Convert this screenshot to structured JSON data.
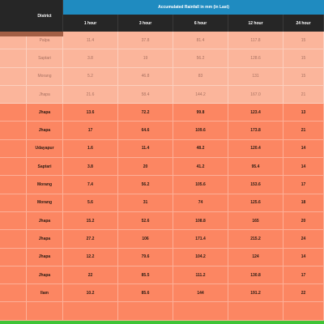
{
  "table": {
    "district_header": "District",
    "group_header": "Accumulated Rainfall in mm (in Last)",
    "columns": [
      "1 hour",
      "3 hour",
      "6 hour",
      "12 hour",
      "24 hour"
    ],
    "rows": [
      {
        "district": "Palpa",
        "values": [
          "11.4",
          "37.8",
          "81.4",
          "117.8",
          "15"
        ],
        "style": "light"
      },
      {
        "district": "Saptari",
        "values": [
          "3.8",
          "19",
          "56.2",
          "128.6",
          "15"
        ],
        "style": "light"
      },
      {
        "district": "Morang",
        "values": [
          "5.2",
          "46.8",
          "83",
          "131",
          "15"
        ],
        "style": "light"
      },
      {
        "district": "Jhapa",
        "values": [
          "21.6",
          "58.4",
          "144.2",
          "167.0",
          "21"
        ],
        "style": "light"
      },
      {
        "district": "Jhapa",
        "values": [
          "13.6",
          "72.2",
          "99.8",
          "123.4",
          "13"
        ],
        "style": "dark"
      },
      {
        "district": "Jhapa",
        "values": [
          "17",
          "64.6",
          "109.6",
          "173.8",
          "21"
        ],
        "style": "dark"
      },
      {
        "district": "Udayapur",
        "values": [
          "1.6",
          "11.4",
          "48.2",
          "120.4",
          "14"
        ],
        "style": "dark"
      },
      {
        "district": "Saptari",
        "values": [
          "3.8",
          "20",
          "41.2",
          "95.4",
          "14"
        ],
        "style": "dark"
      },
      {
        "district": "Morang",
        "values": [
          "7.4",
          "56.2",
          "105.6",
          "153.6",
          "17"
        ],
        "style": "dark"
      },
      {
        "district": "Morang",
        "values": [
          "5.6",
          "31",
          "74",
          "125.6",
          "18"
        ],
        "style": "dark"
      },
      {
        "district": "Jhapa",
        "values": [
          "15.2",
          "52.6",
          "108.8",
          "165",
          "20"
        ],
        "style": "dark"
      },
      {
        "district": "Jhapa",
        "values": [
          "27.2",
          "106",
          "171.4",
          "215.2",
          "24"
        ],
        "style": "dark"
      },
      {
        "district": "Jhapa",
        "values": [
          "12.2",
          "79.6",
          "104.2",
          "124",
          "14"
        ],
        "style": "dark"
      },
      {
        "district": "Jhapa",
        "values": [
          "22",
          "85.5",
          "111.2",
          "130.8",
          "17"
        ],
        "style": "dark"
      },
      {
        "district": "Ilam",
        "values": [
          "10.2",
          "85.6",
          "144",
          "191.2",
          "22"
        ],
        "style": "dark"
      }
    ]
  }
}
